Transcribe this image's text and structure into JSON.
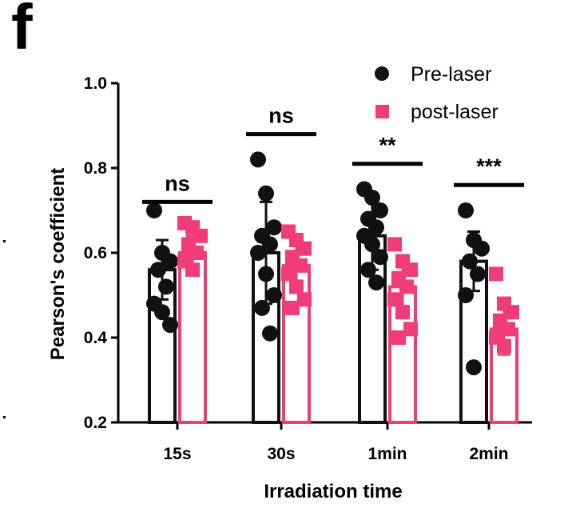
{
  "panel_label": "f",
  "colors": {
    "pre": "#111111",
    "post": "#f03c78"
  },
  "chart_data": {
    "type": "bar",
    "categories": [
      "15s",
      "30s",
      "1min",
      "2min"
    ],
    "xlabel": "Irradiation time",
    "ylabel": "Pearson's coefficient",
    "ylim": [
      0.2,
      1.0
    ],
    "yticks": [
      0.2,
      0.4,
      0.6,
      0.8,
      1.0
    ],
    "ytick_labels": [
      "0.2",
      "0.4",
      "0.6",
      "0.8",
      "1.0"
    ],
    "legend_position": "top-right",
    "grid": false,
    "series": [
      {
        "name": "Pre-laser",
        "marker": "circle",
        "style": "outline",
        "values": [
          0.56,
          0.6,
          0.64,
          0.58
        ],
        "errors": [
          0.07,
          0.12,
          0.08,
          0.07
        ],
        "points": [
          [
            0.7,
            0.6,
            0.58,
            0.56,
            0.52,
            0.48,
            0.46,
            0.43
          ],
          [
            0.82,
            0.74,
            0.66,
            0.64,
            0.62,
            0.6,
            0.55,
            0.5,
            0.47,
            0.41
          ],
          [
            0.75,
            0.73,
            0.7,
            0.68,
            0.66,
            0.64,
            0.62,
            0.59,
            0.56,
            0.53
          ],
          [
            0.7,
            0.63,
            0.61,
            0.58,
            0.55,
            0.5,
            0.33
          ]
        ]
      },
      {
        "name": "post-laser",
        "marker": "square",
        "style": "filled",
        "values": [
          0.6,
          0.57,
          0.52,
          0.42
        ],
        "errors": [
          0.04,
          0.06,
          0.06,
          0.06
        ],
        "points": [
          [
            0.67,
            0.66,
            0.64,
            0.62,
            0.6,
            0.58,
            0.56
          ],
          [
            0.65,
            0.63,
            0.61,
            0.59,
            0.57,
            0.55,
            0.52,
            0.49,
            0.47
          ],
          [
            0.62,
            0.58,
            0.56,
            0.54,
            0.52,
            0.49,
            0.46,
            0.42,
            0.4
          ],
          [
            0.55,
            0.48,
            0.46,
            0.44,
            0.42,
            0.4,
            0.38
          ]
        ]
      }
    ],
    "significance": [
      {
        "category": "15s",
        "label": "ns",
        "y": 0.72
      },
      {
        "category": "30s",
        "label": "ns",
        "y": 0.88
      },
      {
        "category": "1min",
        "label": "**",
        "y": 0.81
      },
      {
        "category": "2min",
        "label": "***",
        "y": 0.76
      }
    ]
  }
}
